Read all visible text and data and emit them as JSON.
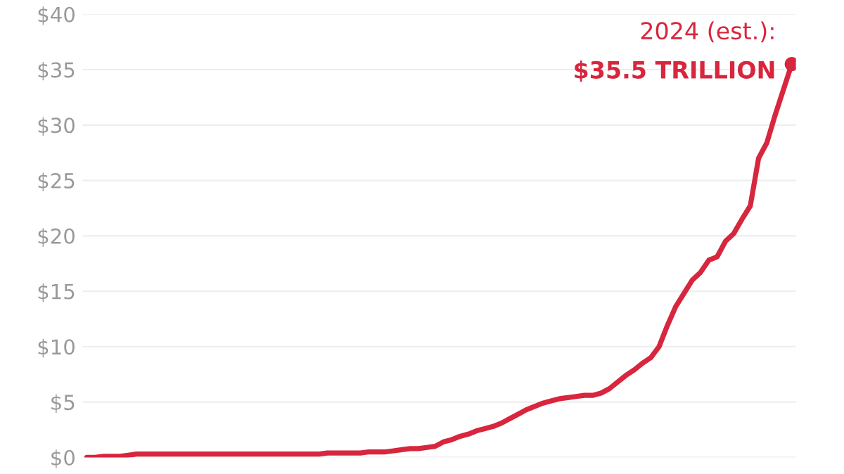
{
  "chart_data": {
    "type": "line",
    "categories": [
      null,
      null,
      null,
      null,
      null,
      null,
      null,
      null,
      null,
      null,
      null,
      null,
      null,
      null,
      null,
      null,
      null,
      null,
      null,
      null,
      null,
      null,
      null,
      null,
      null,
      null,
      null,
      null,
      null,
      null,
      null,
      null,
      null,
      null,
      null,
      null,
      null,
      null,
      null,
      null,
      null,
      null,
      null,
      null,
      null,
      null,
      null,
      null,
      null,
      null,
      null,
      null,
      null,
      null,
      null,
      null,
      null,
      null,
      null,
      null,
      null,
      null,
      null,
      null,
      null,
      null,
      null,
      null,
      null,
      null,
      null,
      null,
      null,
      null,
      null,
      null,
      null,
      null,
      null,
      null,
      null,
      null,
      null,
      null,
      null,
      null
    ],
    "series": [
      {
        "color": "#d7263d",
        "values": [
          0.0,
          0.0,
          0.1,
          0.1,
          0.1,
          0.2,
          0.3,
          0.3,
          0.3,
          0.3,
          0.3,
          0.3,
          0.3,
          0.3,
          0.3,
          0.3,
          0.3,
          0.3,
          0.3,
          0.3,
          0.3,
          0.3,
          0.3,
          0.3,
          0.3,
          0.3,
          0.3,
          0.3,
          0.3,
          0.4,
          0.4,
          0.4,
          0.4,
          0.4,
          0.5,
          0.5,
          0.5,
          0.6,
          0.7,
          0.8,
          0.8,
          0.9,
          1.0,
          1.4,
          1.6,
          1.9,
          2.1,
          2.4,
          2.6,
          2.8,
          3.1,
          3.5,
          3.9,
          4.3,
          4.6,
          4.9,
          5.1,
          5.3,
          5.4,
          5.5,
          5.6,
          5.6,
          5.8,
          6.2,
          6.8,
          7.4,
          7.9,
          8.5,
          9.0,
          10.0,
          11.9,
          13.6,
          14.8,
          16.0,
          16.7,
          17.8,
          18.1,
          19.5,
          20.2,
          21.5,
          22.7,
          27.0,
          28.4,
          30.9,
          33.2,
          35.5
        ]
      },
      {
        "type": "scatter",
        "color": "#d7263d",
        "marker": "circle",
        "values": [
          null,
          null,
          null,
          null,
          null,
          null,
          null,
          null,
          null,
          null,
          null,
          null,
          null,
          null,
          null,
          null,
          null,
          null,
          null,
          null,
          null,
          null,
          null,
          null,
          null,
          null,
          null,
          null,
          null,
          null,
          null,
          null,
          null,
          null,
          null,
          null,
          null,
          null,
          null,
          null,
          null,
          null,
          null,
          null,
          null,
          null,
          null,
          null,
          null,
          null,
          null,
          null,
          null,
          null,
          null,
          null,
          null,
          null,
          null,
          null,
          null,
          null,
          null,
          null,
          null,
          null,
          null,
          null,
          null,
          null,
          null,
          null,
          null,
          null,
          null,
          null,
          null,
          null,
          null,
          null,
          null,
          null,
          null,
          null,
          null,
          35.5
        ]
      }
    ],
    "ylim": [
      0,
      40
    ],
    "yticks": [
      {
        "value": 0,
        "label": "$0"
      },
      {
        "value": 5,
        "label": "$5"
      },
      {
        "value": 10,
        "label": "$10"
      },
      {
        "value": 15,
        "label": "$15"
      },
      {
        "value": 20,
        "label": "$20"
      },
      {
        "value": 25,
        "label": "$25"
      },
      {
        "value": 30,
        "label": "$30"
      },
      {
        "value": 35,
        "label": "$35"
      },
      {
        "value": 40,
        "label": "$40"
      }
    ],
    "grid": "y",
    "tick_labels": "y",
    "annotations": [
      "2024 (est.):",
      "$35.5 TRILLION"
    ]
  }
}
